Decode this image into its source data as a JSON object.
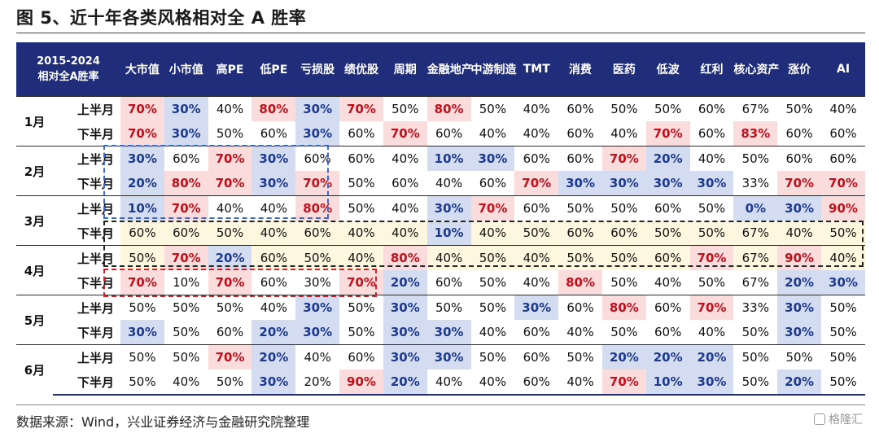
{
  "title": "图 5、近十年各类风格相对全 A 胜率",
  "source": "数据来源：Wind，兴业证券经济与金融研究院整理",
  "watermark": "格隆汇",
  "colors": {
    "header_bg": "#1f2d7a",
    "high_text": "#c0101b",
    "high_bg": "#fbdcdc",
    "low_text": "#1e3a8c",
    "low_bg": "#d3dcf0",
    "band_bg": "#fdf7df",
    "box_blue": "#3d68c9",
    "box_black": "#222222",
    "box_red": "#d2232a"
  },
  "chart_data": {
    "type": "table",
    "title": "图 5、近十年各类风格相对全 A 胜率",
    "corner_label": [
      "2015-2024",
      "相对全A胜率"
    ],
    "columns": [
      "大市值",
      "小市值",
      "高PE",
      "低PE",
      "亏损股",
      "绩优股",
      "周期",
      "金融地产",
      "中游制造",
      "TMT",
      "消费",
      "医药",
      "低波",
      "红利",
      "核心资产",
      "涨价",
      "AI"
    ],
    "months": [
      "1月",
      "2月",
      "3月",
      "4月",
      "5月",
      "6月"
    ],
    "halves": [
      "上半月",
      "下半月"
    ],
    "rows": [
      {
        "month": "1月",
        "half": "上半月",
        "values": [
          "70%",
          "30%",
          "40%",
          "80%",
          "30%",
          "70%",
          "50%",
          "80%",
          "50%",
          "40%",
          "60%",
          "50%",
          "50%",
          "60%",
          "67%",
          "50%",
          "40%"
        ]
      },
      {
        "month": "1月",
        "half": "下半月",
        "values": [
          "70%",
          "30%",
          "50%",
          "60%",
          "30%",
          "60%",
          "70%",
          "60%",
          "40%",
          "40%",
          "60%",
          "40%",
          "70%",
          "60%",
          "83%",
          "60%",
          "60%"
        ]
      },
      {
        "month": "2月",
        "half": "上半月",
        "values": [
          "30%",
          "60%",
          "70%",
          "30%",
          "60%",
          "60%",
          "40%",
          "10%",
          "30%",
          "60%",
          "60%",
          "70%",
          "20%",
          "40%",
          "50%",
          "60%",
          "60%"
        ]
      },
      {
        "month": "2月",
        "half": "下半月",
        "values": [
          "20%",
          "80%",
          "70%",
          "30%",
          "70%",
          "50%",
          "60%",
          "40%",
          "60%",
          "70%",
          "30%",
          "30%",
          "30%",
          "30%",
          "33%",
          "70%",
          "70%"
        ]
      },
      {
        "month": "3月",
        "half": "上半月",
        "values": [
          "10%",
          "70%",
          "40%",
          "40%",
          "80%",
          "50%",
          "40%",
          "30%",
          "70%",
          "60%",
          "50%",
          "50%",
          "60%",
          "50%",
          "0%",
          "30%",
          "90%"
        ]
      },
      {
        "month": "3月",
        "half": "下半月",
        "values": [
          "60%",
          "60%",
          "50%",
          "40%",
          "60%",
          "40%",
          "40%",
          "10%",
          "40%",
          "50%",
          "60%",
          "60%",
          "50%",
          "50%",
          "67%",
          "40%",
          "50%"
        ]
      },
      {
        "month": "4月",
        "half": "上半月",
        "values": [
          "50%",
          "70%",
          "20%",
          "60%",
          "50%",
          "40%",
          "80%",
          "40%",
          "50%",
          "40%",
          "50%",
          "50%",
          "60%",
          "70%",
          "67%",
          "90%",
          "40%"
        ]
      },
      {
        "month": "4月",
        "half": "下半月",
        "values": [
          "70%",
          "10%",
          "70%",
          "60%",
          "30%",
          "70%",
          "20%",
          "60%",
          "50%",
          "40%",
          "80%",
          "50%",
          "40%",
          "50%",
          "67%",
          "20%",
          "30%"
        ]
      },
      {
        "month": "5月",
        "half": "上半月",
        "values": [
          "50%",
          "50%",
          "50%",
          "40%",
          "30%",
          "50%",
          "30%",
          "50%",
          "50%",
          "30%",
          "60%",
          "80%",
          "60%",
          "70%",
          "33%",
          "30%",
          "50%"
        ]
      },
      {
        "month": "5月",
        "half": "下半月",
        "values": [
          "30%",
          "50%",
          "60%",
          "20%",
          "30%",
          "50%",
          "30%",
          "30%",
          "40%",
          "60%",
          "40%",
          "50%",
          "60%",
          "40%",
          "50%",
          "30%",
          "50%"
        ]
      },
      {
        "month": "6月",
        "half": "上半月",
        "values": [
          "50%",
          "50%",
          "70%",
          "20%",
          "40%",
          "60%",
          "30%",
          "30%",
          "50%",
          "60%",
          "50%",
          "20%",
          "20%",
          "20%",
          "50%",
          "50%",
          "50%"
        ]
      },
      {
        "month": "6月",
        "half": "下半月",
        "values": [
          "50%",
          "40%",
          "50%",
          "30%",
          "20%",
          "90%",
          "20%",
          "40%",
          "40%",
          "60%",
          "40%",
          "70%",
          "10%",
          "30%",
          "50%",
          "20%",
          "50%"
        ]
      }
    ],
    "highlight": {
      "high_threshold": 70,
      "low_threshold": 30,
      "yellow_band_rows": [
        "3月 下半月",
        "4月 上半月"
      ],
      "note_exceptions": [
        "0%"
      ]
    }
  }
}
